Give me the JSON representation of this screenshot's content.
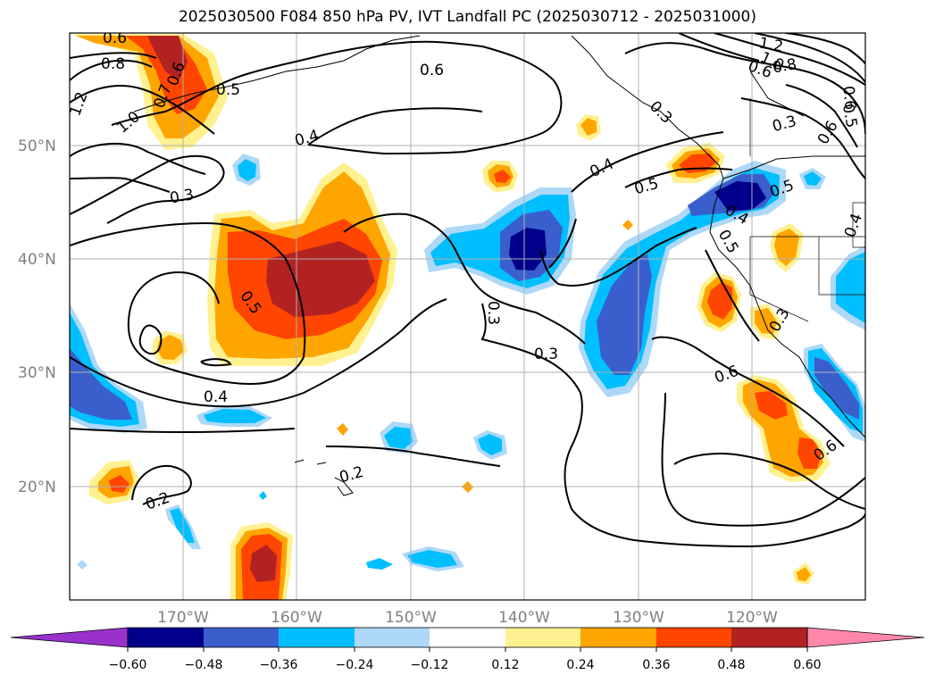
{
  "title": "2025030500 F084 850 hPa PV, IVT Landfall PC (2025030712 - 2025031000)",
  "map": {
    "latitude_labels": [
      "50°N",
      "40°N",
      "30°N",
      "20°N"
    ],
    "longitude_labels": [
      "170°W",
      "160°W",
      "150°W",
      "140°W",
      "130°W",
      "120°W"
    ],
    "gridlines": true,
    "contour_labels": [
      "0.6",
      "0.8",
      "1.2",
      "1.0",
      "0.7",
      "0.6",
      "0.5",
      "0.6",
      "0.4",
      "0.3",
      "0.5",
      "0.4",
      "0.3",
      "0.4",
      "0.5",
      "0.5",
      "0.4",
      "0.5",
      "0.3",
      "0.3",
      "0.6",
      "0.2",
      "0.2",
      "0.6",
      "0.6",
      "1.2",
      "1.0",
      "0.8",
      "0.6",
      "0.3",
      "0.6",
      "0.5",
      "0.4",
      "0.3"
    ],
    "colors": {
      "pos_012": "#fff18f",
      "pos_024": "#ffa500",
      "pos_036": "#ff4500",
      "pos_048": "#b22222",
      "neg_012": "#add8f7",
      "neg_024": "#00bfff",
      "neg_036": "#3a5fcd",
      "neg_048": "#00008b"
    }
  },
  "colorbar": {
    "tick_labels": [
      "−0.60",
      "−0.48",
      "−0.36",
      "−0.24",
      "−0.12",
      "0.12",
      "0.24",
      "0.36",
      "0.48",
      "0.60"
    ],
    "colors": [
      "#9932cc",
      "#00008b",
      "#3a5fcd",
      "#00bfff",
      "#add8f7",
      "#ffffff",
      "#fff18f",
      "#ffa500",
      "#ff4500",
      "#b22222",
      "#ff88aa"
    ]
  }
}
